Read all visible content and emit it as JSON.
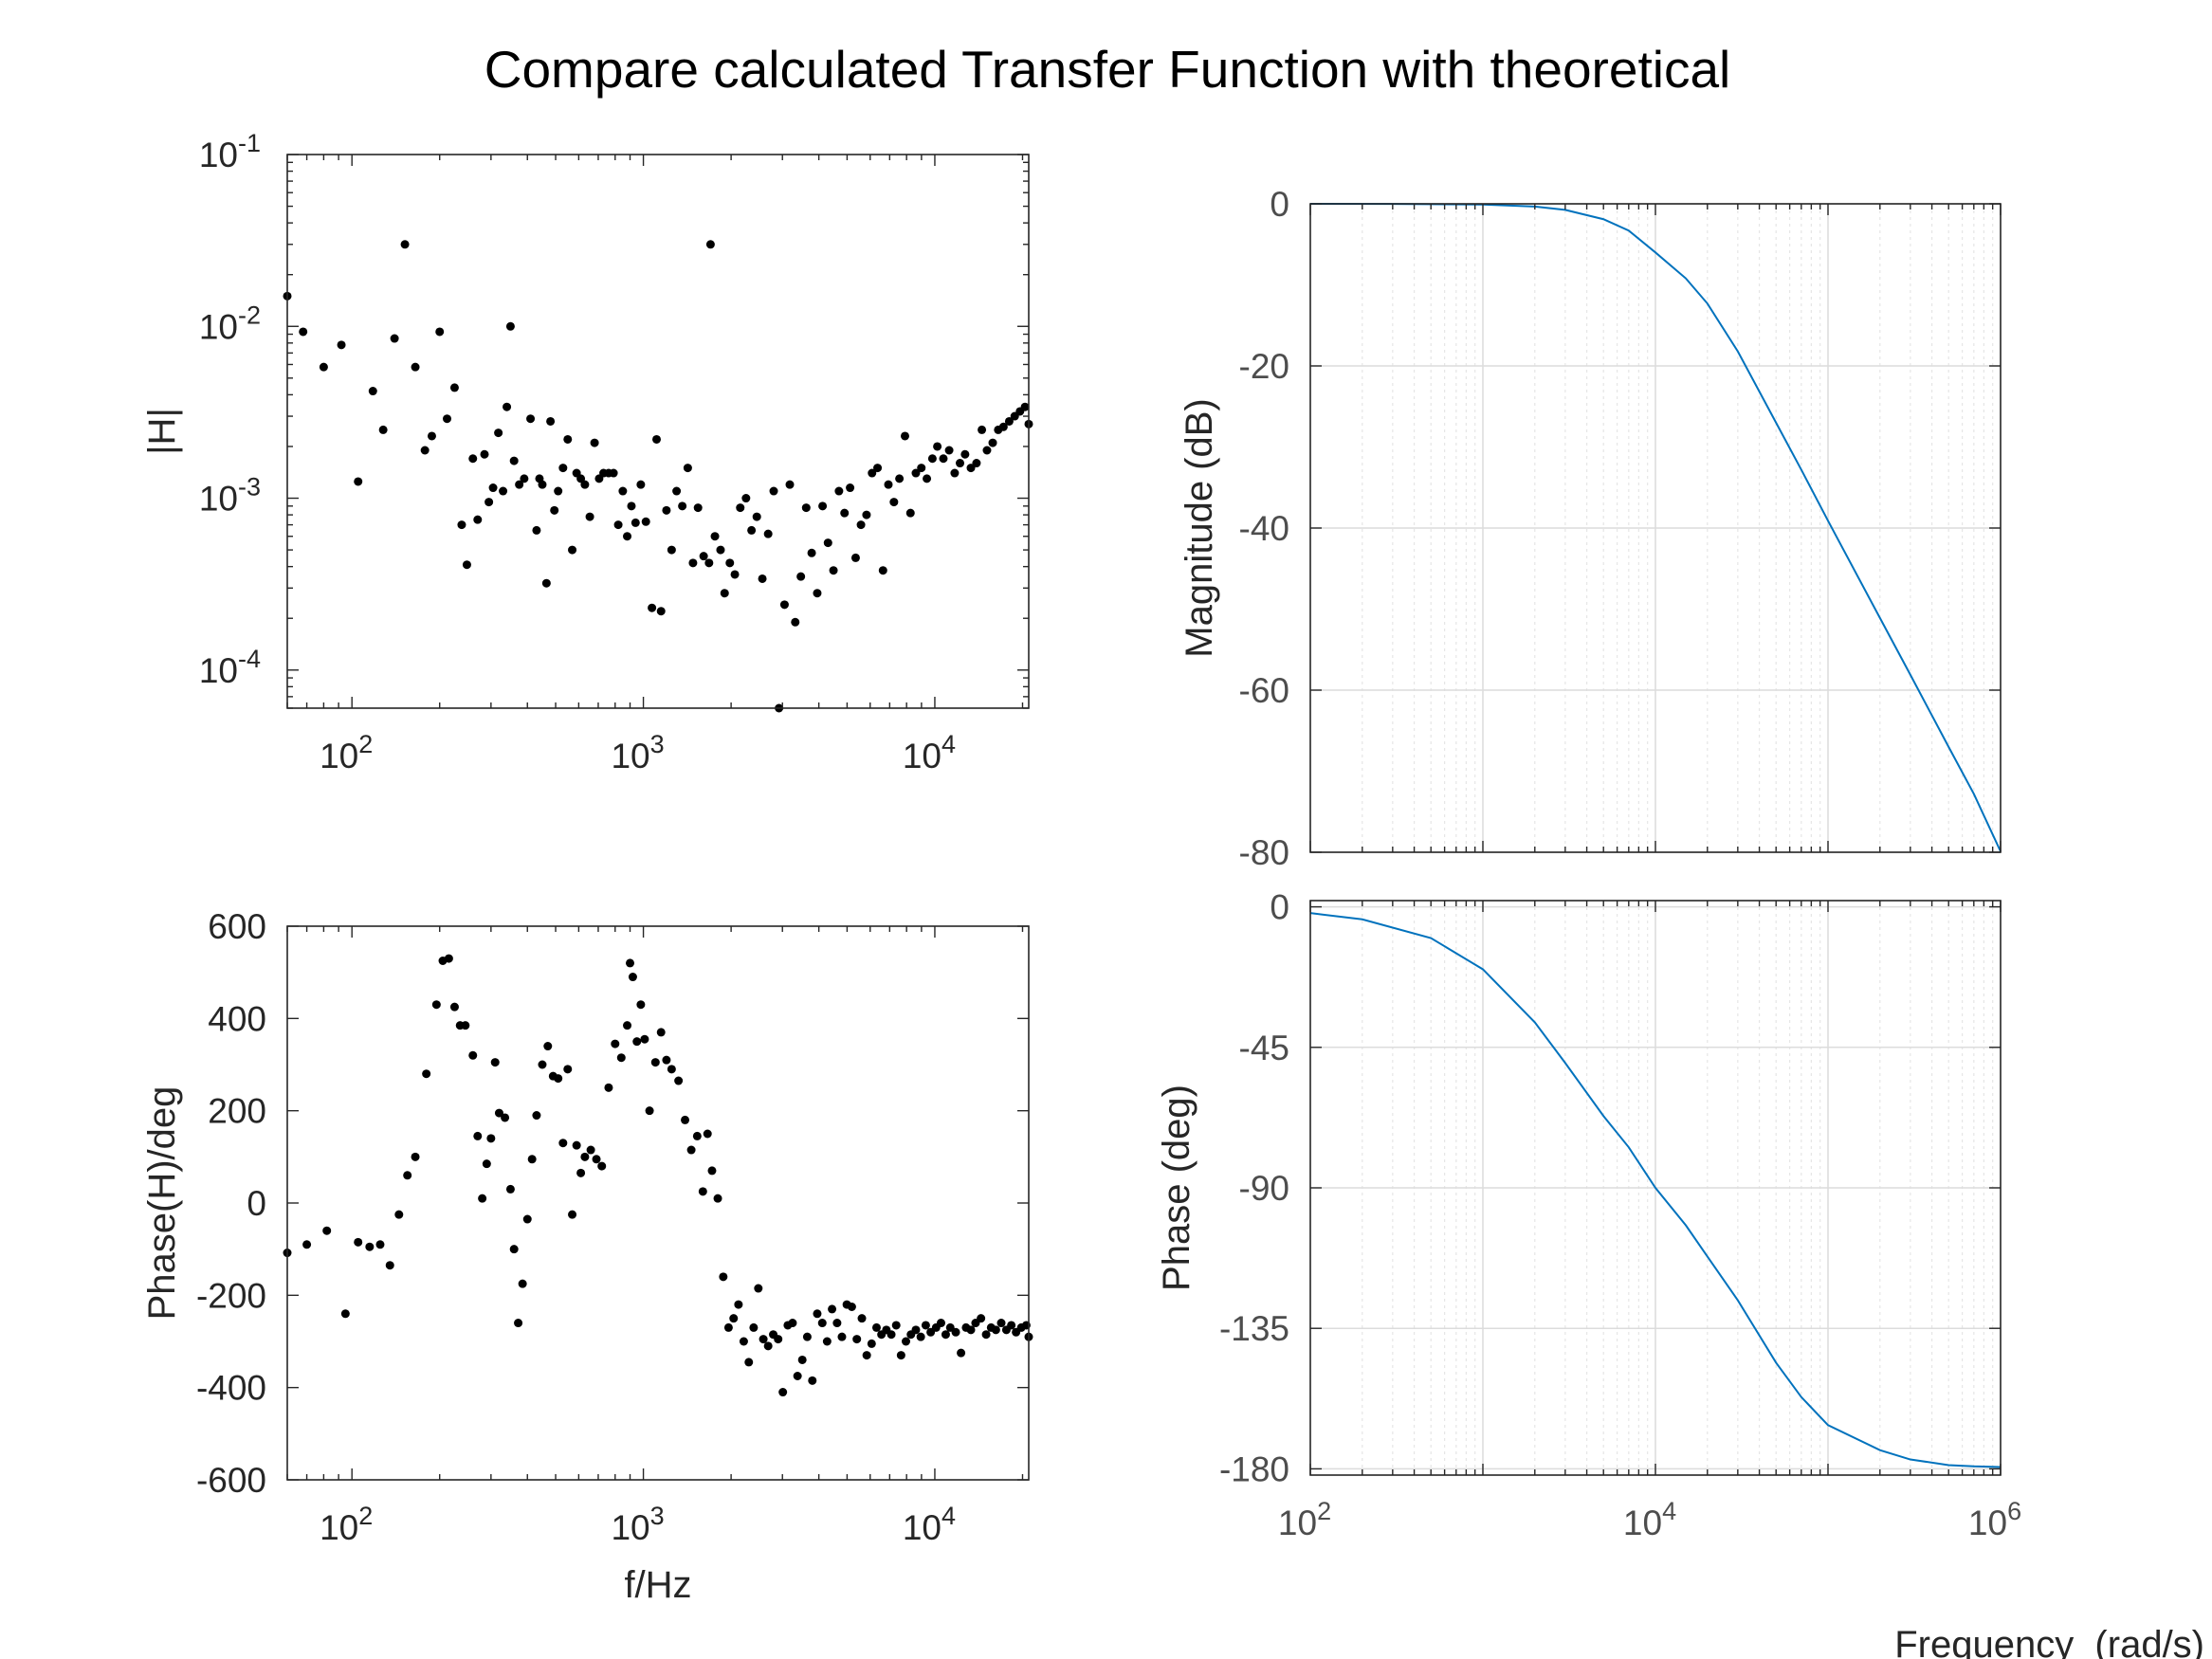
{
  "title": "Compare calculated Transfer Function with theoretical",
  "colors": {
    "measured_marker": "#000000",
    "bode_line": "#0072BD",
    "axis": "#262626",
    "grid": "#dcdcdc"
  },
  "chart_data": [
    {
      "name": "measured-magnitude",
      "type": "scatter",
      "xscale": "log",
      "yscale": "log",
      "xlim": [
        60,
        21000
      ],
      "ylim": [
        6e-05,
        0.1
      ],
      "xticks": [
        {
          "base": "10",
          "exp": "2",
          "value": 100
        },
        {
          "base": "10",
          "exp": "3",
          "value": 1000
        },
        {
          "base": "10",
          "exp": "4",
          "value": 10000
        }
      ],
      "yticks": [
        {
          "base": "10",
          "exp": "-1",
          "value": 0.1
        },
        {
          "base": "10",
          "exp": "-2",
          "value": 0.01
        },
        {
          "base": "10",
          "exp": "-3",
          "value": 0.001
        },
        {
          "base": "10",
          "exp": "-4",
          "value": 0.0001
        }
      ],
      "xlabel": "",
      "ylabel": "|H|",
      "points": [
        [
          60,
          0.015
        ],
        [
          68,
          0.0093
        ],
        [
          80,
          0.0058
        ],
        [
          92,
          0.0078
        ],
        [
          105,
          0.00125
        ],
        [
          118,
          0.0042
        ],
        [
          128,
          0.0025
        ],
        [
          140,
          0.0085
        ],
        [
          152,
          0.03
        ],
        [
          165,
          0.0058
        ],
        [
          178,
          0.0019
        ],
        [
          188,
          0.0023
        ],
        [
          200,
          0.0093
        ],
        [
          212,
          0.0029
        ],
        [
          225,
          0.0044
        ],
        [
          238,
          0.0007
        ],
        [
          248,
          0.00041
        ],
        [
          260,
          0.0017
        ],
        [
          270,
          0.00075
        ],
        [
          285,
          0.0018
        ],
        [
          295,
          0.00095
        ],
        [
          305,
          0.00115
        ],
        [
          318,
          0.0024
        ],
        [
          330,
          0.0011
        ],
        [
          340,
          0.0034
        ],
        [
          350,
          0.01
        ],
        [
          360,
          0.00165
        ],
        [
          375,
          0.0012
        ],
        [
          390,
          0.0013
        ],
        [
          410,
          0.0029
        ],
        [
          430,
          0.00065
        ],
        [
          440,
          0.0013
        ],
        [
          450,
          0.0012
        ],
        [
          465,
          0.00032
        ],
        [
          480,
          0.0028
        ],
        [
          495,
          0.00085
        ],
        [
          510,
          0.0011
        ],
        [
          530,
          0.0015
        ],
        [
          550,
          0.0022
        ],
        [
          570,
          0.0005
        ],
        [
          590,
          0.0014
        ],
        [
          610,
          0.0013
        ],
        [
          630,
          0.0012
        ],
        [
          655,
          0.00078
        ],
        [
          680,
          0.0021
        ],
        [
          705,
          0.0013
        ],
        [
          730,
          0.0014
        ],
        [
          760,
          0.0014
        ],
        [
          790,
          0.0014
        ],
        [
          820,
          0.0007
        ],
        [
          850,
          0.0011
        ],
        [
          880,
          0.0006
        ],
        [
          910,
          0.0009
        ],
        [
          940,
          0.00072
        ],
        [
          980,
          0.0012
        ],
        [
          1020,
          0.00073
        ],
        [
          1070,
          0.00023
        ],
        [
          1110,
          0.0022
        ],
        [
          1150,
          0.00022
        ],
        [
          1200,
          0.00085
        ],
        [
          1250,
          0.0005
        ],
        [
          1300,
          0.0011
        ],
        [
          1360,
          0.0009
        ],
        [
          1420,
          0.0015
        ],
        [
          1480,
          0.00042
        ],
        [
          1540,
          0.00088
        ],
        [
          1610,
          0.00046
        ],
        [
          1680,
          0.00042
        ],
        [
          1700,
          0.03
        ],
        [
          1760,
          0.0006
        ],
        [
          1840,
          0.0005
        ],
        [
          1900,
          0.00028
        ],
        [
          1980,
          0.00042
        ],
        [
          2060,
          0.00036
        ],
        [
          2150,
          0.00088
        ],
        [
          2250,
          0.001
        ],
        [
          2350,
          0.00065
        ],
        [
          2450,
          0.00078
        ],
        [
          2560,
          0.00034
        ],
        [
          2680,
          0.00062
        ],
        [
          2800,
          0.0011
        ],
        [
          2920,
          6e-05
        ],
        [
          3050,
          0.00024
        ],
        [
          3180,
          0.0012
        ],
        [
          3320,
          0.00019
        ],
        [
          3470,
          0.00035
        ],
        [
          3620,
          0.00088
        ],
        [
          3780,
          0.00048
        ],
        [
          3950,
          0.00028
        ],
        [
          4120,
          0.0009
        ],
        [
          4300,
          0.00055
        ],
        [
          4490,
          0.00038
        ],
        [
          4690,
          0.0011
        ],
        [
          4900,
          0.00082
        ],
        [
          5120,
          0.00115
        ],
        [
          5350,
          0.00045
        ],
        [
          5580,
          0.0007
        ],
        [
          5830,
          0.0008
        ],
        [
          6090,
          0.0014
        ],
        [
          6360,
          0.0015
        ],
        [
          6640,
          0.00038
        ],
        [
          6930,
          0.0012
        ],
        [
          7240,
          0.00095
        ],
        [
          7560,
          0.0013
        ],
        [
          7900,
          0.0023
        ],
        [
          8250,
          0.00082
        ],
        [
          8610,
          0.0014
        ],
        [
          8990,
          0.0015
        ],
        [
          9390,
          0.0013
        ],
        [
          9810,
          0.0017
        ],
        [
          10200,
          0.002
        ],
        [
          10700,
          0.0017
        ],
        [
          11200,
          0.0019
        ],
        [
          11700,
          0.0014
        ],
        [
          12200,
          0.0016
        ],
        [
          12700,
          0.0018
        ],
        [
          13300,
          0.0015
        ],
        [
          13900,
          0.0016
        ],
        [
          14500,
          0.0025
        ],
        [
          15100,
          0.0019
        ],
        [
          15800,
          0.0021
        ],
        [
          16500,
          0.0025
        ],
        [
          17200,
          0.0026
        ],
        [
          18000,
          0.0028
        ],
        [
          18800,
          0.003
        ],
        [
          19600,
          0.0032
        ],
        [
          20400,
          0.0034
        ],
        [
          21000,
          0.0027
        ]
      ]
    },
    {
      "name": "measured-phase",
      "type": "scatter",
      "xscale": "log",
      "xlim": [
        60,
        21000
      ],
      "ylim": [
        -600,
        600
      ],
      "xticks": [
        {
          "base": "10",
          "exp": "2",
          "value": 100
        },
        {
          "base": "10",
          "exp": "3",
          "value": 1000
        },
        {
          "base": "10",
          "exp": "4",
          "value": 10000
        }
      ],
      "yticks": [
        600,
        400,
        200,
        0,
        -200,
        -400,
        -600
      ],
      "xlabel": "f/Hz",
      "ylabel": "Phase(H)/deg",
      "points": [
        [
          60,
          -108
        ],
        [
          70,
          -90
        ],
        [
          82,
          -60
        ],
        [
          95,
          -240
        ],
        [
          105,
          -85
        ],
        [
          115,
          -95
        ],
        [
          125,
          -90
        ],
        [
          135,
          -135
        ],
        [
          145,
          -25
        ],
        [
          155,
          60
        ],
        [
          165,
          100
        ],
        [
          180,
          280
        ],
        [
          195,
          430
        ],
        [
          205,
          525
        ],
        [
          215,
          530
        ],
        [
          225,
          425
        ],
        [
          235,
          385
        ],
        [
          245,
          385
        ],
        [
          260,
          320
        ],
        [
          270,
          145
        ],
        [
          280,
          10
        ],
        [
          290,
          85
        ],
        [
          300,
          140
        ],
        [
          310,
          305
        ],
        [
          320,
          195
        ],
        [
          335,
          185
        ],
        [
          350,
          30
        ],
        [
          360,
          -100
        ],
        [
          372,
          -260
        ],
        [
          385,
          -175
        ],
        [
          400,
          -35
        ],
        [
          415,
          95
        ],
        [
          430,
          190
        ],
        [
          450,
          300
        ],
        [
          470,
          340
        ],
        [
          490,
          275
        ],
        [
          510,
          270
        ],
        [
          530,
          130
        ],
        [
          550,
          290
        ],
        [
          570,
          -25
        ],
        [
          590,
          125
        ],
        [
          610,
          65
        ],
        [
          630,
          100
        ],
        [
          660,
          115
        ],
        [
          690,
          95
        ],
        [
          720,
          80
        ],
        [
          760,
          250
        ],
        [
          800,
          345
        ],
        [
          840,
          315
        ],
        [
          880,
          385
        ],
        [
          900,
          520
        ],
        [
          920,
          490
        ],
        [
          950,
          350
        ],
        [
          980,
          430
        ],
        [
          1010,
          355
        ],
        [
          1050,
          200
        ],
        [
          1100,
          305
        ],
        [
          1150,
          370
        ],
        [
          1200,
          310
        ],
        [
          1250,
          290
        ],
        [
          1320,
          265
        ],
        [
          1390,
          180
        ],
        [
          1460,
          115
        ],
        [
          1530,
          145
        ],
        [
          1600,
          25
        ],
        [
          1660,
          150
        ],
        [
          1720,
          70
        ],
        [
          1800,
          10
        ],
        [
          1880,
          -160
        ],
        [
          1960,
          -270
        ],
        [
          2040,
          -250
        ],
        [
          2120,
          -220
        ],
        [
          2210,
          -300
        ],
        [
          2300,
          -345
        ],
        [
          2390,
          -270
        ],
        [
          2480,
          -185
        ],
        [
          2580,
          -295
        ],
        [
          2680,
          -310
        ],
        [
          2790,
          -285
        ],
        [
          2900,
          -295
        ],
        [
          3010,
          -410
        ],
        [
          3130,
          -265
        ],
        [
          3250,
          -260
        ],
        [
          3380,
          -375
        ],
        [
          3510,
          -340
        ],
        [
          3650,
          -290
        ],
        [
          3800,
          -385
        ],
        [
          3950,
          -240
        ],
        [
          4110,
          -260
        ],
        [
          4270,
          -300
        ],
        [
          4440,
          -230
        ],
        [
          4620,
          -260
        ],
        [
          4800,
          -290
        ],
        [
          4990,
          -220
        ],
        [
          5190,
          -225
        ],
        [
          5400,
          -295
        ],
        [
          5620,
          -250
        ],
        [
          5840,
          -330
        ],
        [
          6070,
          -305
        ],
        [
          6310,
          -270
        ],
        [
          6560,
          -285
        ],
        [
          6820,
          -275
        ],
        [
          7090,
          -285
        ],
        [
          7370,
          -265
        ],
        [
          7660,
          -330
        ],
        [
          7960,
          -300
        ],
        [
          8280,
          -285
        ],
        [
          8610,
          -275
        ],
        [
          8950,
          -290
        ],
        [
          9310,
          -265
        ],
        [
          9680,
          -280
        ],
        [
          10100,
          -270
        ],
        [
          10500,
          -260
        ],
        [
          10900,
          -285
        ],
        [
          11300,
          -270
        ],
        [
          11800,
          -280
        ],
        [
          12300,
          -325
        ],
        [
          12800,
          -270
        ],
        [
          13300,
          -275
        ],
        [
          13800,
          -260
        ],
        [
          14400,
          -250
        ],
        [
          15000,
          -285
        ],
        [
          15600,
          -270
        ],
        [
          16200,
          -275
        ],
        [
          16900,
          -260
        ],
        [
          17600,
          -275
        ],
        [
          18300,
          -265
        ],
        [
          19000,
          -280
        ],
        [
          19800,
          -270
        ],
        [
          20600,
          -265
        ],
        [
          21000,
          -290
        ]
      ]
    },
    {
      "name": "bode-magnitude",
      "type": "line",
      "xscale": "log",
      "xlim": [
        100,
        1000000
      ],
      "ylim": [
        -80,
        0
      ],
      "yticks": [
        0,
        -20,
        -40,
        -60,
        -80
      ],
      "ylabel": "Magnitude (dB)",
      "x": [
        100,
        300,
        1000,
        2000,
        3000,
        5000,
        7000,
        10000,
        15000,
        20000,
        30000,
        50000,
        70000,
        100000,
        200000,
        300000,
        500000,
        700000,
        1000000
      ],
      "y": [
        0,
        -0.01,
        -0.09,
        -0.34,
        -0.75,
        -1.9,
        -3.3,
        -6.0,
        -9.2,
        -12.3,
        -18.2,
        -27.0,
        -32.8,
        -39.1,
        -51.1,
        -58.1,
        -67.0,
        -72.8,
        -79.9
      ]
    },
    {
      "name": "bode-phase",
      "type": "line",
      "xscale": "log",
      "xlim": [
        100,
        1000000
      ],
      "ylim": [
        -182,
        2
      ],
      "xticks": [
        {
          "base": "10",
          "exp": "2",
          "value": 100
        },
        {
          "base": "10",
          "exp": "4",
          "value": 10000
        },
        {
          "base": "10",
          "exp": "6",
          "value": 1000000
        }
      ],
      "yticks": [
        0,
        -45,
        -90,
        -135,
        -180
      ],
      "xlabel": "Frequency  (rad/s)",
      "ylabel": "Phase (deg)",
      "x": [
        100,
        200,
        500,
        1000,
        2000,
        3000,
        5000,
        7000,
        10000,
        15000,
        20000,
        30000,
        50000,
        70000,
        100000,
        200000,
        300000,
        500000,
        700000,
        1000000
      ],
      "y": [
        -2,
        -4,
        -10,
        -20,
        -37,
        -50,
        -67,
        -77,
        -90,
        -102,
        -112,
        -126,
        -146,
        -157,
        -166,
        -174,
        -177,
        -178.8,
        -179.2,
        -179.4
      ]
    }
  ]
}
